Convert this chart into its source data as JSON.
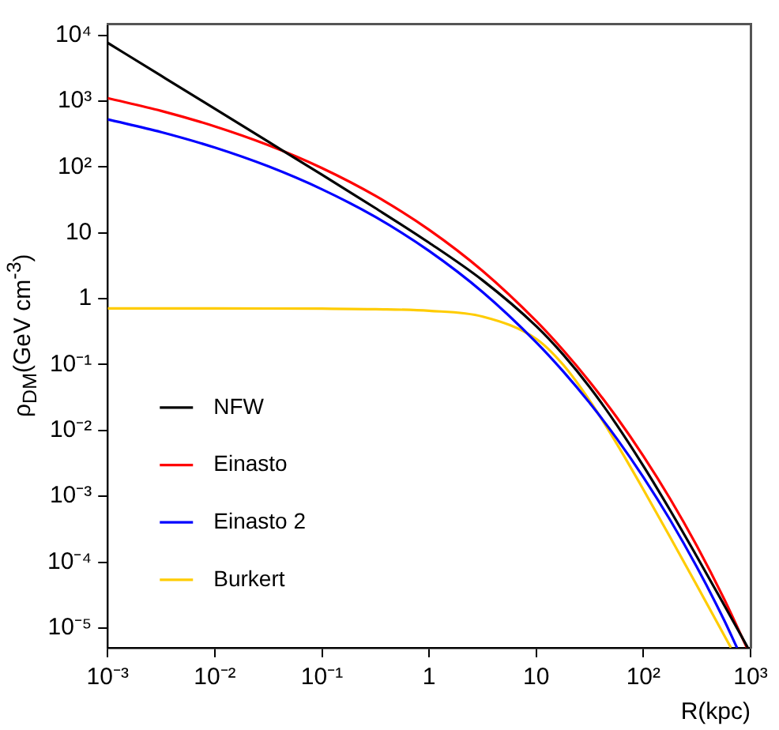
{
  "chart_data": {
    "type": "line",
    "xlabel": "R(kpc)",
    "ylabel": "ρ$_{DM}$(GeV cm$^{-3}$)",
    "log": "xy",
    "grid": false,
    "legend": "left",
    "xlim": [
      0.001,
      1000
    ],
    "ylim": [
      5e-06,
      15000
    ],
    "xticks": [
      {
        "value": 0.001,
        "label": "10⁻³"
      },
      {
        "value": 0.01,
        "label": "10⁻²"
      },
      {
        "value": 0.1,
        "label": "10⁻¹"
      },
      1,
      10,
      {
        "value": 100,
        "label": "10²"
      },
      {
        "value": 1000,
        "label": "10³"
      }
    ],
    "yticks": [
      {
        "value": 1e-05,
        "label": "10⁻⁵"
      },
      {
        "value": 0.0001,
        "label": "10⁻⁴"
      },
      {
        "value": 0.001,
        "label": "10⁻³"
      },
      {
        "value": 0.01,
        "label": "10⁻²"
      },
      {
        "value": 0.1,
        "label": "10⁻¹"
      },
      1,
      10,
      {
        "value": 100,
        "label": "10²"
      },
      {
        "value": 1000,
        "label": "10³"
      },
      {
        "value": 10000,
        "label": "10⁴"
      }
    ],
    "series": [
      {
        "name": "NFW",
        "color": "#000000",
        "x": [
          0.001,
          0.003162,
          0.01,
          0.03162,
          0.1,
          0.3162,
          1,
          3.162,
          10,
          17.78,
          31.62,
          56.23,
          100,
          177.8,
          316.2,
          562.3,
          940
        ],
        "values": [
          7680,
          2428,
          767,
          242,
          76.2,
          23.7,
          7.08,
          1.9,
          0.383,
          0.1426,
          0.0452,
          0.01222,
          0.00288,
          0.000611,
          0.0001208,
          2.29e-05,
          5.06e-06
        ]
      },
      {
        "name": "Einasto",
        "color": "#ff0000",
        "x": [
          0.001,
          0.003162,
          0.01,
          0.03162,
          0.1,
          0.3162,
          1,
          3.162,
          10,
          17.78,
          31.62,
          56.23,
          100,
          177.8,
          316.2,
          562.3,
          925
        ],
        "values": [
          1109,
          711,
          414,
          214.5,
          96.3,
          36.4,
          11.14,
          2.64,
          0.458,
          0.1664,
          0.0545,
          0.0159,
          0.00408,
          0.000914,
          0.000175,
          2.83e-05,
          5e-06
        ]
      },
      {
        "name": "Einasto 2",
        "color": "#0000ff",
        "x": [
          0.001,
          0.003162,
          0.01,
          0.03162,
          0.1,
          0.3162,
          1,
          3.162,
          10,
          17.78,
          31.62,
          56.23,
          100,
          177.8,
          316.2,
          562.3,
          748
        ],
        "values": [
          529,
          339,
          197.5,
          102.3,
          45.9,
          17.4,
          5.31,
          1.26,
          0.218,
          0.0794,
          0.026,
          0.00758,
          0.00195,
          0.000436,
          8.35e-05,
          1.35e-05,
          5e-06
        ]
      },
      {
        "name": "Burkert",
        "color": "#ffcc00",
        "x": [
          0.001,
          0.003162,
          0.01,
          0.03162,
          0.1,
          0.3162,
          1,
          3.162,
          10,
          17.78,
          31.62,
          56.23,
          100,
          177.8,
          316.2,
          562.3,
          656
        ],
        "values": [
          0.712,
          0.712,
          0.711,
          0.71,
          0.706,
          0.694,
          0.656,
          0.536,
          0.2453,
          0.0998,
          0.02817,
          0.00633,
          0.001265,
          0.0002394,
          4.4e-05,
          7.96e-06,
          5.03e-06
        ]
      }
    ]
  }
}
